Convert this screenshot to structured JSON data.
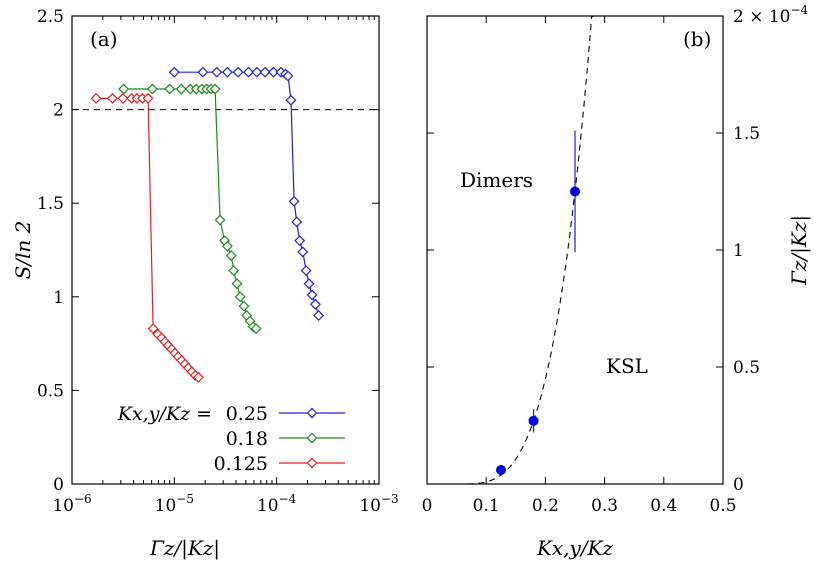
{
  "chart_data": [
    {
      "type": "line",
      "panel_label": "(a)",
      "xlabel": "Γz/|Kz|",
      "ylabel": "S/ln 2",
      "xscale": "log",
      "xlim": [
        1e-06,
        0.001
      ],
      "ylim": [
        0,
        2.5
      ],
      "x_ticks": [
        "10^-6",
        "10^-5",
        "10^-4",
        "10^-3"
      ],
      "y_ticks": [
        "0",
        "0.5",
        "1",
        "1.5",
        "2",
        "2.5"
      ],
      "reference_line": {
        "y": 2.0,
        "style": "dashed"
      },
      "legend": {
        "title": "Kx,y/Kz =",
        "position": "bottom-right"
      },
      "series": [
        {
          "name": "0.25",
          "color": "#1f1fd6",
          "points": [
            [
              1e-05,
              2.2
            ],
            [
              1.9e-05,
              2.2
            ],
            [
              2.6e-05,
              2.2
            ],
            [
              3.3e-05,
              2.2
            ],
            [
              4.2e-05,
              2.2
            ],
            [
              5.3e-05,
              2.2
            ],
            [
              6.4e-05,
              2.2
            ],
            [
              7.7e-05,
              2.2
            ],
            [
              9.3e-05,
              2.2
            ],
            [
              0.00011,
              2.2
            ],
            [
              0.000122,
              2.19
            ],
            [
              0.000129,
              2.18
            ],
            [
              0.000138,
              2.05
            ],
            [
              0.000148,
              1.51
            ],
            [
              0.000157,
              1.4
            ],
            [
              0.000168,
              1.3
            ],
            [
              0.00018,
              1.24
            ],
            [
              0.000194,
              1.14
            ],
            [
              0.000207,
              1.07
            ],
            [
              0.000222,
              1.01
            ],
            [
              0.000239,
              0.96
            ],
            [
              0.000257,
              0.9
            ]
          ]
        },
        {
          "name": "0.18",
          "color": "#1a8a1a",
          "points": [
            [
              3.2e-06,
              2.11
            ],
            [
              6.1e-06,
              2.11
            ],
            [
              9e-06,
              2.11
            ],
            [
              1.17e-05,
              2.11
            ],
            [
              1.43e-05,
              2.11
            ],
            [
              1.64e-05,
              2.11
            ],
            [
              1.86e-05,
              2.11
            ],
            [
              2.07e-05,
              2.11
            ],
            [
              2.28e-05,
              2.11
            ],
            [
              2.5e-05,
              2.11
            ],
            [
              2.8e-05,
              1.41
            ],
            [
              3.1e-05,
              1.3
            ],
            [
              3.3e-05,
              1.27
            ],
            [
              3.6e-05,
              1.22
            ],
            [
              3.8e-05,
              1.14
            ],
            [
              4.1e-05,
              1.07
            ],
            [
              4.4e-05,
              1.0
            ],
            [
              4.8e-05,
              0.95
            ],
            [
              5.1e-05,
              0.9
            ],
            [
              5.5e-05,
              0.87
            ],
            [
              5.9e-05,
              0.84
            ],
            [
              6.3e-05,
              0.83
            ]
          ]
        },
        {
          "name": "0.125",
          "color": "#e02020",
          "points": [
            [
              1.72e-06,
              2.06
            ],
            [
              2.49e-06,
              2.06
            ],
            [
              3.15e-06,
              2.06
            ],
            [
              3.83e-06,
              2.06
            ],
            [
              4.31e-06,
              2.06
            ],
            [
              4.89e-06,
              2.06
            ],
            [
              5.54e-06,
              2.06
            ],
            [
              6.2e-06,
              0.83
            ],
            [
              6.9e-06,
              0.8
            ],
            [
              7.5e-06,
              0.78
            ],
            [
              8.1e-06,
              0.76
            ],
            [
              8.7e-06,
              0.74
            ],
            [
              9.4e-06,
              0.72
            ],
            [
              1.01e-05,
              0.7
            ],
            [
              1.09e-05,
              0.68
            ],
            [
              1.18e-05,
              0.66
            ],
            [
              1.27e-05,
              0.64
            ],
            [
              1.37e-05,
              0.62
            ],
            [
              1.48e-05,
              0.6
            ],
            [
              1.6e-05,
              0.58
            ],
            [
              1.72e-05,
              0.57
            ]
          ]
        }
      ]
    },
    {
      "type": "scatter",
      "panel_label": "(b)",
      "xlabel": "Kx,y/Kz",
      "ylabel": "Γz/|Kz|",
      "xlim": [
        0,
        0.5
      ],
      "ylim": [
        0,
        0.0002
      ],
      "x_ticks": [
        "0",
        "0.1",
        "0.2",
        "0.3",
        "0.4",
        "0.5"
      ],
      "y_ticks": [
        "0",
        "0.5",
        "1",
        "1.5",
        "2 × 10^-4"
      ],
      "region_labels": [
        "Dimers",
        "KSL"
      ],
      "points": [
        {
          "x": 0.125,
          "y": 6e-06,
          "yerr": 0.0
        },
        {
          "x": 0.18,
          "y": 2.7e-05,
          "yerr": 5e-06
        },
        {
          "x": 0.25,
          "y": 0.000125,
          "yerr": 2.6e-05
        }
      ],
      "fit_curve": {
        "style": "dashed",
        "x_start": 0.05,
        "x_end": 0.3
      }
    }
  ]
}
